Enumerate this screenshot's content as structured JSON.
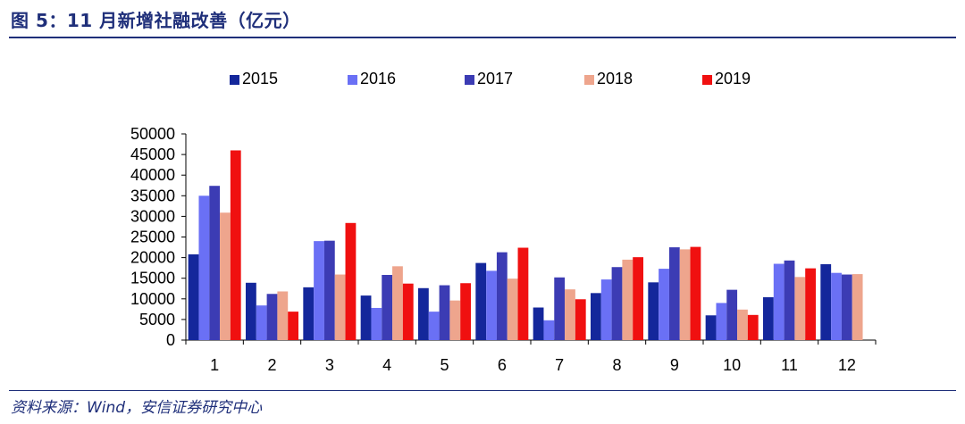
{
  "page": {
    "title": "图 5：11 月新增社融改善（亿元）",
    "source": "资料来源：Wind，安信证券研究中心"
  },
  "chart_data": {
    "type": "bar",
    "title": "",
    "xlabel": "",
    "ylabel": "",
    "categories": [
      "1",
      "2",
      "3",
      "4",
      "5",
      "6",
      "7",
      "8",
      "9",
      "10",
      "11",
      "12"
    ],
    "ylim": [
      0,
      50000
    ],
    "yticks": [
      0,
      5000,
      10000,
      15000,
      20000,
      25000,
      30000,
      35000,
      40000,
      45000,
      50000
    ],
    "ytick_labels": [
      "0",
      "5000",
      "10000",
      "15000",
      "20000",
      "25000",
      "30000",
      "35000",
      "40000",
      "45000",
      "50000"
    ],
    "grid": false,
    "legend_position": "top",
    "series": [
      {
        "name": "2015",
        "color": "#14279b",
        "values": [
          20800,
          13900,
          12800,
          10800,
          12600,
          18700,
          7900,
          11400,
          14000,
          6000,
          10400,
          18400
        ]
      },
      {
        "name": "2016",
        "color": "#6a70f5",
        "values": [
          35000,
          8400,
          24000,
          7800,
          6900,
          16800,
          4800,
          14700,
          17300,
          9000,
          18500,
          16300
        ]
      },
      {
        "name": "2017",
        "color": "#3c3cb4",
        "values": [
          37400,
          11200,
          24100,
          15800,
          13300,
          21300,
          15200,
          17700,
          22500,
          12200,
          19300,
          15900
        ]
      },
      {
        "name": "2018",
        "color": "#eea58d",
        "values": [
          30900,
          11800,
          15900,
          17900,
          9600,
          14900,
          12300,
          19500,
          22000,
          7400,
          15300,
          16000
        ]
      },
      {
        "name": "2019",
        "color": "#f01010",
        "values": [
          46000,
          6900,
          28400,
          13700,
          13800,
          22400,
          9900,
          20100,
          22600,
          6100,
          17400,
          null
        ]
      }
    ]
  }
}
